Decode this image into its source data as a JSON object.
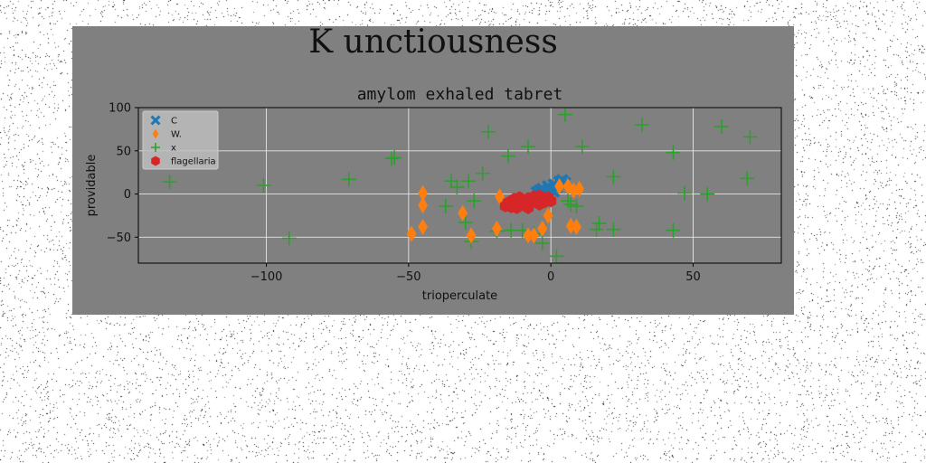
{
  "figure": {
    "suptitle": "K unctiousness",
    "background_color": "#808080"
  },
  "chart_data": {
    "type": "scatter",
    "title": "amylom exhaled tabret",
    "xlabel": "trioperculate",
    "ylabel": "providable",
    "xlim": [
      -145,
      81
    ],
    "ylim": [
      -80,
      100
    ],
    "xticks": [
      -100,
      -50,
      0,
      50
    ],
    "yticks": [
      -50,
      0,
      50,
      100
    ],
    "grid": true,
    "legend_position": "upper-left",
    "series": [
      {
        "name": "C",
        "marker": "x-filled",
        "color": "#1f77b4",
        "points": [
          [
            -3,
            6
          ],
          [
            -1,
            9
          ],
          [
            1,
            11
          ],
          [
            3,
            14
          ],
          [
            4,
            16
          ],
          [
            2,
            8
          ],
          [
            0,
            5
          ],
          [
            -2,
            3
          ],
          [
            -4,
            4
          ],
          [
            5,
            13
          ],
          [
            1,
            3
          ],
          [
            -5,
            2
          ]
        ]
      },
      {
        "name": "W.",
        "marker": "thin-diamond",
        "color": "#ff7f0e",
        "points": [
          [
            -45,
            1
          ],
          [
            -45,
            -13
          ],
          [
            -45,
            -38
          ],
          [
            -49,
            -46
          ],
          [
            -31,
            -22
          ],
          [
            -28,
            -48
          ],
          [
            -18,
            -3
          ],
          [
            -19,
            -40
          ],
          [
            -6,
            -48
          ],
          [
            -3,
            -40
          ],
          [
            -1,
            -25
          ],
          [
            3,
            9
          ],
          [
            6,
            9
          ],
          [
            8,
            4
          ],
          [
            10,
            6
          ],
          [
            7,
            -37
          ],
          [
            9,
            -38
          ],
          [
            -8,
            -48
          ]
        ]
      },
      {
        "name": "x",
        "marker": "plus",
        "color": "#2ca02c",
        "points": [
          [
            -134,
            14
          ],
          [
            -101,
            10
          ],
          [
            -92,
            -51
          ],
          [
            -71,
            17
          ],
          [
            -56,
            41
          ],
          [
            -55,
            42
          ],
          [
            -37,
            -14
          ],
          [
            -35,
            15
          ],
          [
            -33,
            8
          ],
          [
            -30,
            -33
          ],
          [
            -29,
            15
          ],
          [
            -28,
            -55
          ],
          [
            -27,
            -8
          ],
          [
            -24,
            24
          ],
          [
            -22,
            72
          ],
          [
            -19,
            -43
          ],
          [
            -15,
            44
          ],
          [
            -14,
            -42
          ],
          [
            -10,
            -42
          ],
          [
            -8,
            55
          ],
          [
            -3,
            -57
          ],
          [
            2,
            -72
          ],
          [
            5,
            92
          ],
          [
            6,
            -8
          ],
          [
            7,
            -12
          ],
          [
            9,
            -14
          ],
          [
            11,
            55
          ],
          [
            16,
            -41
          ],
          [
            17,
            -34
          ],
          [
            22,
            -41
          ],
          [
            22,
            20
          ],
          [
            32,
            80
          ],
          [
            43,
            -42
          ],
          [
            43,
            48
          ],
          [
            47,
            1
          ],
          [
            55,
            0
          ],
          [
            60,
            78
          ],
          [
            69,
            18
          ],
          [
            70,
            66
          ],
          [
            -2,
            -8
          ],
          [
            -6,
            -46
          ]
        ]
      },
      {
        "name": "flagellaria",
        "marker": "hexagon",
        "color": "#d62728",
        "points": [
          [
            -15,
            -10
          ],
          [
            -14,
            -15
          ],
          [
            -12,
            -12
          ],
          [
            -10,
            -8
          ],
          [
            -9,
            -13
          ],
          [
            -8,
            -5
          ],
          [
            -7,
            -10
          ],
          [
            -5,
            -7
          ],
          [
            -4,
            -2
          ],
          [
            -3,
            -6
          ],
          [
            -2,
            -9
          ],
          [
            -1,
            -4
          ],
          [
            -13,
            -6
          ],
          [
            -11,
            -4
          ],
          [
            -6,
            -3
          ],
          [
            -16,
            -14
          ],
          [
            -12,
            -16
          ],
          [
            0,
            -8
          ],
          [
            -8,
            -16
          ],
          [
            -4,
            -12
          ]
        ]
      }
    ]
  }
}
